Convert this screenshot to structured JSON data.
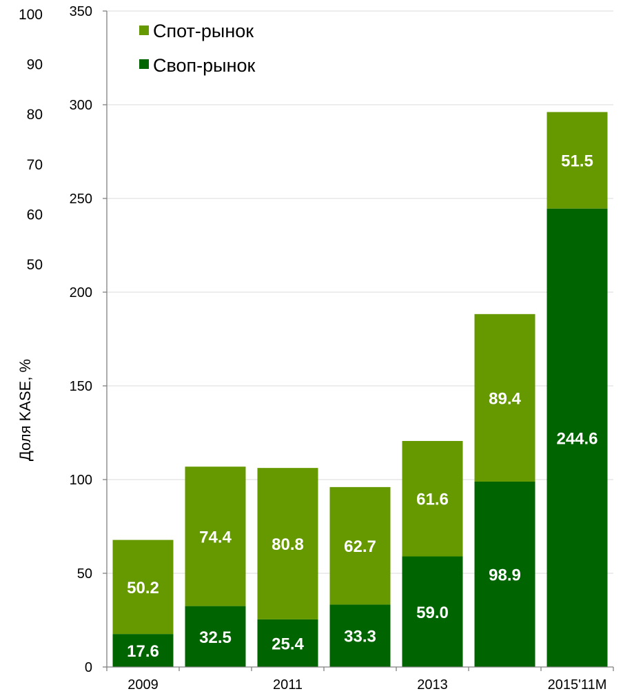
{
  "chart_data": {
    "type": "bar",
    "stacked": true,
    "categories": [
      "2009",
      "",
      "2011",
      "",
      "2013",
      "",
      "2015'11M"
    ],
    "series": [
      {
        "name": "Своп-рынок",
        "color": "#006400",
        "values": [
          17.6,
          32.5,
          25.4,
          33.3,
          59.0,
          98.9,
          244.6
        ]
      },
      {
        "name": "Спот-рынок",
        "color": "#669900",
        "values": [
          50.2,
          74.4,
          80.8,
          62.7,
          61.6,
          89.4,
          51.5
        ]
      }
    ],
    "data_labels": [
      [
        "17.6",
        "32.5",
        "25.4",
        "33.3",
        "59.0",
        "98.9",
        "244.6"
      ],
      [
        "50.2",
        "74.4",
        "80.8",
        "62.7",
        "61.6",
        "89.4",
        "51.5"
      ]
    ],
    "legend": {
      "position": "top-left",
      "items": [
        {
          "label": "Спот-рынок",
          "color": "#669900"
        },
        {
          "label": "Своп-рынок",
          "color": "#006400"
        }
      ]
    },
    "y_axis": {
      "range": [
        0,
        350
      ],
      "ticks": [
        "0",
        "50",
        "100",
        "150",
        "200",
        "250",
        "300",
        "350"
      ]
    },
    "y2_axis": {
      "label": "Доля KASE, %",
      "ticks": [
        "100",
        "90",
        "80",
        "70",
        "60",
        "50"
      ]
    },
    "grid": true
  }
}
